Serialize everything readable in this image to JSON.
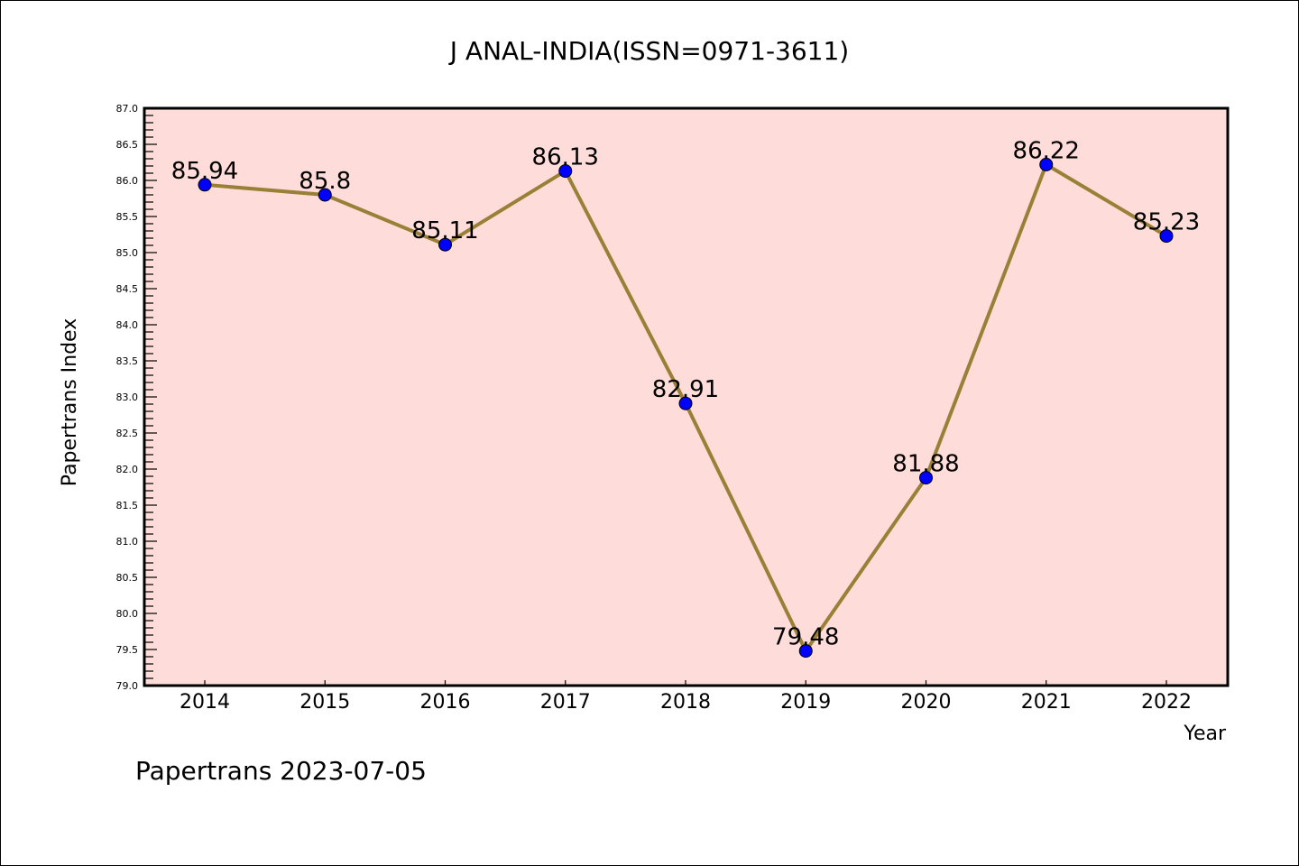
{
  "chart_data": {
    "type": "line",
    "title": "J ANAL-INDIA(ISSN=0971-3611)",
    "xlabel": "Year",
    "ylabel": "Papertrans Index",
    "categories": [
      "2014",
      "2015",
      "2016",
      "2017",
      "2018",
      "2019",
      "2020",
      "2021",
      "2022"
    ],
    "series": [
      {
        "name": "Papertrans Index",
        "values": [
          85.94,
          85.8,
          85.11,
          86.13,
          82.91,
          79.48,
          81.88,
          86.22,
          85.23
        ]
      }
    ],
    "data_labels": [
      "85.94",
      "85.8",
      "85.11",
      "86.13",
      "82.91",
      "79.48",
      "81.88",
      "86.22",
      "85.23"
    ],
    "ylim": [
      79.0,
      87.0
    ],
    "yticks": [
      "79.0",
      "79.5",
      "80.0",
      "80.5",
      "81.0",
      "81.5",
      "82.0",
      "82.5",
      "83.0",
      "83.5",
      "84.0",
      "84.5",
      "85.0",
      "85.5",
      "86.0",
      "86.5",
      "87.0"
    ],
    "grid": false,
    "legend": "none",
    "footer": "Papertrans 2023-07-05",
    "colors": {
      "background": "#fddcd9",
      "line": "#9a7f36",
      "marker": "#0000ff"
    }
  }
}
